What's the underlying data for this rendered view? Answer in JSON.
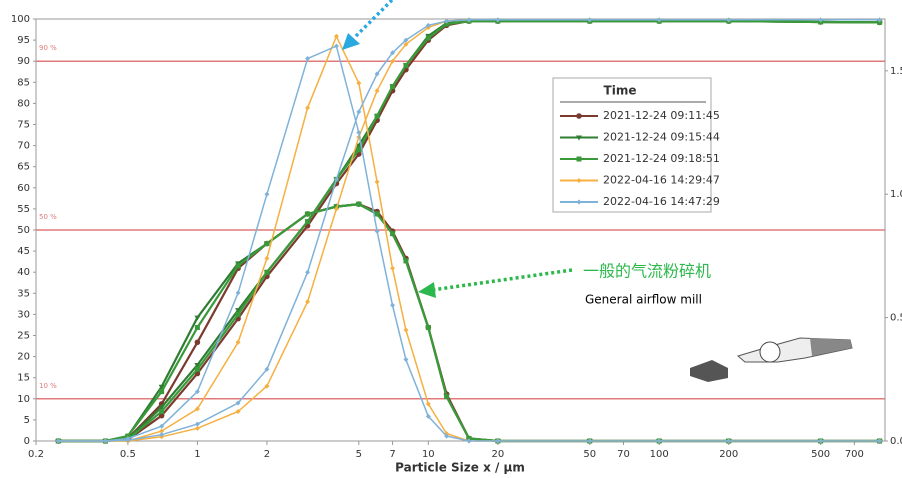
{
  "chart_data": {
    "type": "line",
    "x_label": "Particle Size x / μm",
    "legend_title": "Time",
    "x": [
      0.25,
      0.4,
      0.5,
      0.7,
      1,
      1.5,
      2,
      3,
      4,
      5,
      6,
      7,
      8,
      10,
      12,
      15,
      20,
      50,
      100,
      200,
      500,
      900
    ],
    "series": [
      {
        "name": "2021-12-24 09:11:45",
        "color": "#7b3a2e",
        "marker": "circle",
        "values": [
          0,
          0,
          0.3,
          6,
          16,
          29,
          39,
          51,
          61,
          68,
          76,
          83,
          88,
          95,
          98.5,
          99.5,
          99.5,
          99.5,
          99.5,
          99.5,
          99.3,
          99.2
        ],
        "density_values": [
          0,
          0,
          0.01,
          0.15,
          0.4,
          0.7,
          0.8,
          0.92,
          0.95,
          0.96,
          0.93,
          0.85,
          0.74,
          0.46,
          0.19,
          0.01,
          0,
          0,
          0,
          0,
          0,
          0
        ]
      },
      {
        "name": "2021-12-24 09:15:44",
        "color": "#2e7d32",
        "marker": "triangle",
        "values": [
          0,
          0,
          0.5,
          8,
          18,
          31,
          40,
          52,
          62,
          70,
          77,
          84,
          89,
          96,
          99,
          99.5,
          99.5,
          99.5,
          99.5,
          99.5,
          99.3,
          99.2
        ],
        "density_values": [
          0,
          0,
          0.02,
          0.22,
          0.5,
          0.72,
          0.8,
          0.92,
          0.95,
          0.96,
          0.92,
          0.84,
          0.73,
          0.46,
          0.18,
          0.01,
          0,
          0,
          0,
          0,
          0,
          0
        ]
      },
      {
        "name": "2021-12-24 09:18:51",
        "color": "#3a9a3a",
        "marker": "square",
        "values": [
          0,
          0,
          0.4,
          7,
          17,
          30,
          40,
          52,
          62,
          69,
          77,
          84,
          89,
          95.5,
          98.8,
          99.5,
          99.5,
          99.5,
          99.5,
          99.5,
          99.3,
          99.2
        ],
        "density_values": [
          0,
          0,
          0.02,
          0.2,
          0.46,
          0.71,
          0.8,
          0.92,
          0.95,
          0.96,
          0.92,
          0.84,
          0.73,
          0.46,
          0.18,
          0.01,
          0,
          0,
          0,
          0,
          0,
          0
        ]
      },
      {
        "name": "2022-04-16 14:29:47",
        "color": "#f5b041",
        "marker": "diamond",
        "values": [
          0,
          0,
          0,
          1,
          3,
          7,
          13,
          33,
          55,
          72,
          83,
          90,
          94,
          98,
          99.5,
          99.8,
          99.8,
          99.8,
          99.8,
          99.8,
          99.8,
          99.8
        ],
        "density_values": [
          0,
          0,
          0,
          0.04,
          0.13,
          0.4,
          0.74,
          1.35,
          1.64,
          1.45,
          1.05,
          0.7,
          0.45,
          0.15,
          0.03,
          0,
          0,
          0,
          0,
          0,
          0,
          0
        ]
      },
      {
        "name": "2022-04-16 14:47:29",
        "color": "#7fb2d9",
        "marker": "diamond",
        "values": [
          0,
          0,
          0.2,
          1.5,
          4,
          9,
          17,
          40,
          62,
          78,
          87,
          92,
          95,
          98.5,
          99.5,
          99.8,
          99.8,
          99.8,
          99.8,
          99.8,
          99.8,
          99.8
        ],
        "density_values": [
          0,
          0,
          0.01,
          0.06,
          0.2,
          0.6,
          1.0,
          1.55,
          1.6,
          1.25,
          0.85,
          0.55,
          0.33,
          0.1,
          0.02,
          0,
          0,
          0,
          0,
          0,
          0,
          0
        ]
      }
    ],
    "xlim": [
      0.2,
      950
    ],
    "xscale": "log",
    "xticks": [
      0.2,
      0.5,
      1,
      2,
      5,
      7,
      10,
      20,
      50,
      70,
      100,
      200,
      500,
      700
    ],
    "ylim": [
      0,
      100
    ],
    "yticks": [
      0,
      5,
      10,
      15,
      20,
      25,
      30,
      35,
      40,
      45,
      50,
      55,
      60,
      65,
      70,
      75,
      80,
      85,
      90,
      95,
      100
    ],
    "y2lim": [
      0,
      1.71
    ],
    "y2ticks": [
      {
        "value": 0,
        "label": "0.0"
      },
      0.5,
      {
        "value": 1,
        "label": "1.0"
      },
      1.5
    ],
    "reference_lines": [
      {
        "value": 90,
        "label": "90 %"
      },
      {
        "value": 50,
        "label": "50 %"
      },
      {
        "value": 10,
        "label": "10 %"
      }
    ],
    "reference_color": "#e07a7a",
    "annotations": [
      "一般的气流粉碎机",
      "General airflow mill"
    ],
    "annotation_color": "#2db84d"
  }
}
